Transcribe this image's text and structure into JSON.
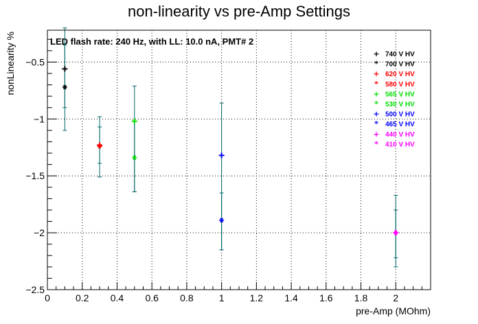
{
  "chart_data": {
    "type": "scatter",
    "title": "non-linearity vs pre-Amp Settings",
    "xlabel": "pre-Amp (MOhm)",
    "ylabel": "nonLinearity %",
    "xlim": [
      0,
      2.2
    ],
    "ylim": [
      -2.5,
      -0.22
    ],
    "x_ticks": [
      "0",
      "0.2",
      "0.4",
      "0.6",
      "0.8",
      "1",
      "1.2",
      "1.4",
      "1.6",
      "1.8",
      "2"
    ],
    "x_tick_values": [
      0,
      0.2,
      0.4,
      0.6,
      0.8,
      1.0,
      1.2,
      1.4,
      1.6,
      1.8,
      2.0
    ],
    "y_ticks": [
      "−2.5",
      "−2",
      "−1.5",
      "−1",
      "−0.5"
    ],
    "y_tick_values": [
      -2.5,
      -2.0,
      -1.5,
      -1.0,
      -0.5
    ],
    "grid": true,
    "legend_position": "top-right",
    "annotation": "LED flash rate: 240 Hz, with LL: 10.0 nA, PMT# 2",
    "series": [
      {
        "name": "740 V HV",
        "color": "#000000",
        "marker": "+",
        "x": [
          0.1
        ],
        "y": [
          -0.56
        ],
        "yerr_low": [
          0.54
        ],
        "yerr_high": [
          0.36
        ]
      },
      {
        "name": "700 V HV",
        "color": "#000000",
        "marker": "*",
        "x": [
          0.1
        ],
        "y": [
          -0.72
        ],
        "yerr_low": [
          0.18
        ],
        "yerr_high": [
          0.37
        ]
      },
      {
        "name": "620 V HV",
        "color": "#ff0000",
        "marker": "+",
        "x": [
          0.3
        ],
        "y": [
          -1.23
        ],
        "yerr_low": [
          0.28
        ],
        "yerr_high": [
          0.25
        ]
      },
      {
        "name": "580 V HV",
        "color": "#ff0000",
        "marker": "*",
        "x": [
          0.3
        ],
        "y": [
          -1.24
        ],
        "yerr_low": [
          0.15
        ],
        "yerr_high": [
          0.17
        ]
      },
      {
        "name": "565 V HV",
        "color": "#00dd00",
        "marker": "+",
        "x": [
          0.5
        ],
        "y": [
          -1.02
        ],
        "yerr_low": [
          0.62
        ],
        "yerr_high": [
          0.31
        ]
      },
      {
        "name": "530 V HV",
        "color": "#00dd00",
        "marker": "*",
        "x": [
          0.5
        ],
        "y": [
          -1.34
        ],
        "yerr_low": [
          0.3
        ],
        "yerr_high": [
          0.32
        ]
      },
      {
        "name": "500 V HV",
        "color": "#0000ff",
        "marker": "+",
        "x": [
          1.0
        ],
        "y": [
          -1.32
        ],
        "yerr_low": [
          0.83
        ],
        "yerr_high": [
          0.46
        ]
      },
      {
        "name": "465 V HV",
        "color": "#0000ff",
        "marker": "*",
        "x": [
          1.0
        ],
        "y": [
          -1.89
        ],
        "yerr_low": [
          0.26
        ],
        "yerr_high": [
          0.24
        ]
      },
      {
        "name": "440 V HV",
        "color": "#ff00ff",
        "marker": "+",
        "x": [
          2.0
        ],
        "y": [
          -2.0
        ],
        "yerr_low": [
          0.3
        ],
        "yerr_high": [
          0.33
        ]
      },
      {
        "name": "410 V HV",
        "color": "#ff00ff",
        "marker": "*",
        "x": [
          2.0
        ],
        "y": [
          -2.0
        ],
        "yerr_low": [
          0.22
        ],
        "yerr_high": [
          0.2
        ]
      }
    ],
    "error_bar_color": "#006666"
  }
}
